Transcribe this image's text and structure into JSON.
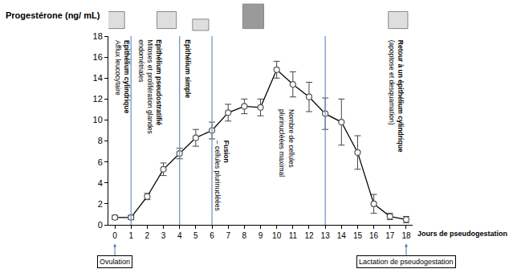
{
  "chart_data": {
    "type": "line",
    "y_label": "Progestérone (ng/ mL)",
    "x_label": "Jours de pseudogestation",
    "x": [
      0,
      1,
      2,
      3,
      4,
      5,
      6,
      7,
      8,
      9,
      10,
      11,
      12,
      13,
      14,
      15,
      16,
      17,
      18
    ],
    "values": [
      0.7,
      0.7,
      2.7,
      5.3,
      6.8,
      8.3,
      9.0,
      10.7,
      11.3,
      11.2,
      14.8,
      13.4,
      12.2,
      10.6,
      9.8,
      6.9,
      2.0,
      0.8,
      0.5
    ],
    "errors": [
      0.2,
      0.2,
      0.3,
      0.6,
      0.5,
      0.8,
      0.8,
      0.8,
      0.7,
      0.8,
      0.8,
      1.2,
      1.4,
      1.5,
      2.2,
      1.6,
      0.9,
      0.3,
      0.3
    ],
    "color": "#000000",
    "marker": "circle",
    "xlim": [
      -0.4,
      18.4
    ],
    "xticks": [
      0,
      1,
      2,
      3,
      4,
      5,
      6,
      7,
      8,
      9,
      10,
      11,
      12,
      13,
      14,
      15,
      16,
      17,
      18
    ],
    "ylim": [
      0,
      18
    ],
    "yticks": [
      0,
      2,
      4,
      6,
      8,
      10,
      12,
      14,
      16,
      18
    ],
    "grid": false,
    "phase_boundaries": [
      1,
      4,
      6,
      13
    ],
    "annotations": [
      {
        "x": 0.5,
        "y": 17.8,
        "title": "Epithélium cylindrique",
        "lines": [
          "Afflux leucocytaire"
        ]
      },
      {
        "x": 2.2,
        "y": 17.8,
        "title": "Epithélium pseudostratifié",
        "lines": [
          "Mitoses et prolifération glandes",
          "endométriales"
        ]
      },
      {
        "x": 4.5,
        "y": 17.8,
        "title": "Epithélium simple",
        "lines": []
      },
      {
        "x": 6.6,
        "y": 8.2,
        "title": "Fusion",
        "lines": [
          "– cellules plurinucléées"
        ]
      },
      {
        "x": 10.6,
        "y": 11.2,
        "lines": [
          "Nombre de cellules",
          "plurinucléées maximal"
        ]
      },
      {
        "x": 17.4,
        "y": 17.8,
        "title": "Retour à un épithélium cylindrique",
        "lines": [
          "(apoptose et desquamation)"
        ]
      }
    ],
    "events": [
      {
        "x": 0,
        "text": "Ovulation"
      },
      {
        "x": 18,
        "text": "Lactation de pseudogestation"
      }
    ]
  }
}
